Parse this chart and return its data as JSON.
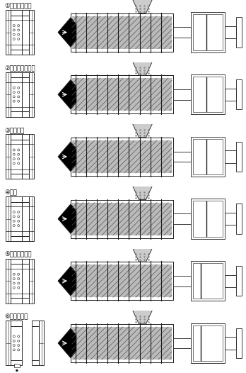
{
  "steps": [
    {
      "num": "①",
      "label": "金型が閉じる",
      "mold_open": false,
      "screw_retracted": false
    },
    {
      "num": "②",
      "label": "シリンダが前進",
      "mold_open": false,
      "screw_retracted": false
    },
    {
      "num": "③",
      "label": "射出する",
      "mold_open": false,
      "screw_retracted": false
    },
    {
      "num": "④",
      "label": "保圧",
      "mold_open": false,
      "screw_retracted": false
    },
    {
      "num": "⑤",
      "label": "冷却・可塔化",
      "mold_open": false,
      "screw_retracted": true
    },
    {
      "num": "⑥",
      "label": "金型が開く",
      "mold_open": true,
      "screw_retracted": true
    }
  ],
  "lc": "#1a1a1a",
  "gray": "#999999",
  "light": "#cccccc",
  "white": "#ffffff",
  "black": "#111111"
}
